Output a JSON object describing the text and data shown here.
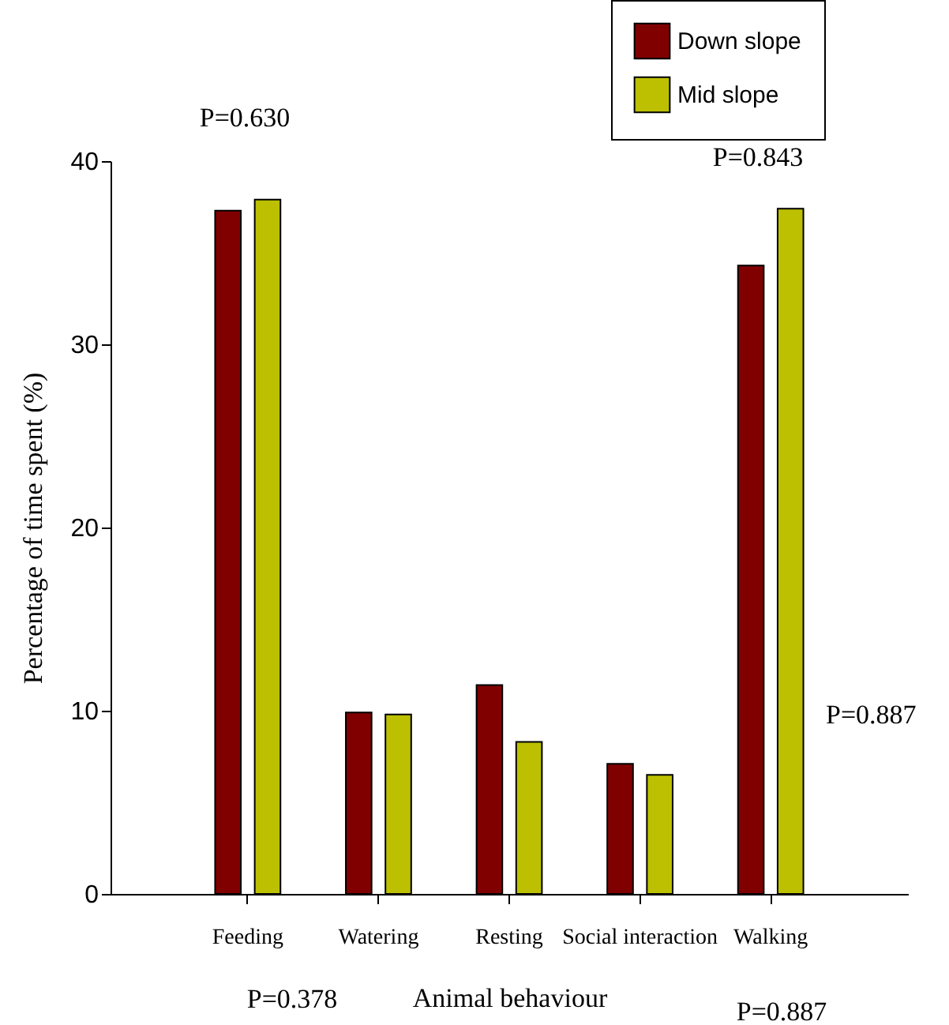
{
  "chart_data": {
    "type": "bar",
    "xlabel": "Animal behaviour",
    "ylabel": "Percentage of time spent (%)",
    "categories": [
      "Feeding",
      "Watering",
      "Resting",
      "Social interaction",
      "Walking"
    ],
    "series": [
      {
        "name": "Down slope",
        "color": "#800000",
        "values": [
          37.3,
          9.9,
          11.4,
          7.1,
          34.3
        ]
      },
      {
        "name": "Mid slope",
        "color": "#bcc000",
        "values": [
          37.9,
          9.8,
          8.3,
          6.5,
          37.4
        ]
      }
    ],
    "ylim": [
      0,
      40
    ],
    "yticks": [
      0,
      10,
      20,
      30,
      40
    ],
    "grid": false,
    "legend": "top right",
    "annotations": [
      "P=0.630",
      "P=0.843",
      "P=0.887",
      "P=0.378",
      "P=0.887"
    ]
  }
}
